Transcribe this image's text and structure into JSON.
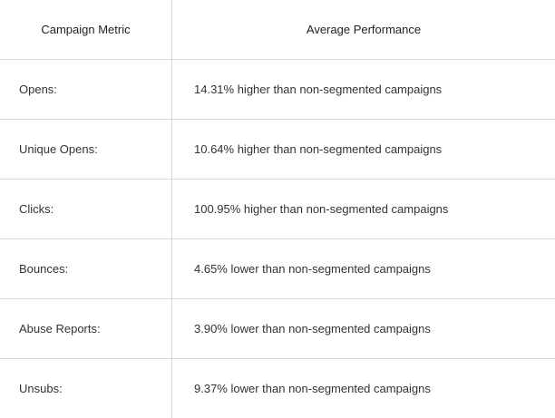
{
  "table": {
    "headers": {
      "metric": "Campaign Metric",
      "performance": "Average Performance"
    },
    "rows": [
      {
        "metric": "Opens:",
        "performance": "14.31% higher than non-segmented campaigns"
      },
      {
        "metric": "Unique Opens:",
        "performance": "10.64% higher than non-segmented campaigns"
      },
      {
        "metric": "Clicks:",
        "performance": "100.95% higher than non-segmented campaigns"
      },
      {
        "metric": "Bounces:",
        "performance": "4.65% lower than non-segmented campaigns"
      },
      {
        "metric": "Abuse Reports:",
        "performance": "3.90% lower than non-segmented campaigns"
      },
      {
        "metric": "Unsubs:",
        "performance": "9.37% lower than non-segmented campaigns"
      }
    ]
  }
}
